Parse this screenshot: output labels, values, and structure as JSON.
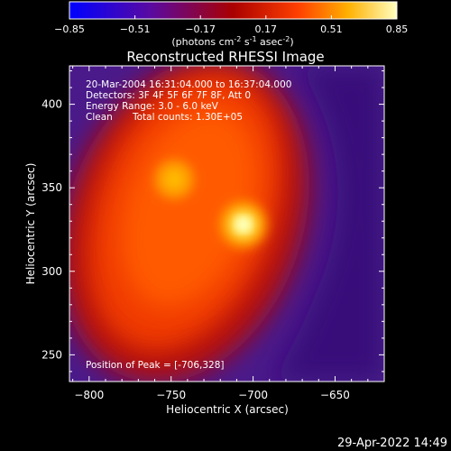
{
  "chart_data": {
    "type": "heatmap",
    "title": "Reconstructed RHESSI Image",
    "colorbar": {
      "ticks": [
        "-0.85",
        "-0.51",
        "-0.17",
        "0.17",
        "0.51",
        "0.85"
      ],
      "range": [
        -0.85,
        0.85
      ],
      "unit_label": "(photons cm",
      "unit_exp1": "-2",
      "unit_mid": " s",
      "unit_exp2": "-1",
      "unit_end": " asec",
      "unit_exp3": "-2",
      "unit_close": ")"
    },
    "xlabel": "Heliocentric X (arcsec)",
    "ylabel": "Heliocentric Y (arcsec)",
    "xlim": [
      -812,
      -620
    ],
    "ylim": [
      234,
      423
    ],
    "x_ticks": [
      -800,
      -750,
      -700,
      -650
    ],
    "x_tick_labels": [
      "−800",
      "−750",
      "−700",
      "−650"
    ],
    "y_ticks": [
      250,
      300,
      350,
      400
    ],
    "y_tick_labels": [
      "250",
      "300",
      "350",
      "400"
    ],
    "annotations": [
      "20-Mar-2004 16:31:04.000 to 16:37:04.000",
      "Detectors: 3F 4F 5F 6F 7F 8F, Att 0",
      "Energy Range: 3.0 - 6.0 keV",
      "Clean",
      "Total counts: 1.30E+05"
    ],
    "peak_label": "Position of Peak = [-706,328]",
    "peak": {
      "x": -706,
      "y": 328
    },
    "secondary_peak": {
      "x": -748,
      "y": 355
    },
    "colormap": [
      "#0000ff",
      "#6600aa",
      "#aa0000",
      "#ff4400",
      "#ffaa00",
      "#ffff99",
      "#ffffff"
    ]
  },
  "footer_date": "29-Apr-2022 14:49"
}
